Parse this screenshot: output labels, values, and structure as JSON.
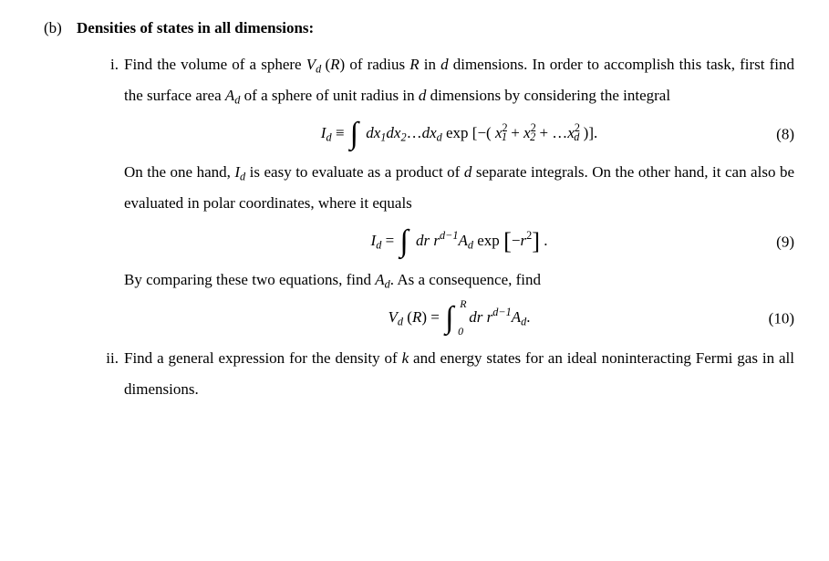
{
  "part_b": {
    "label": "(b)",
    "title": "Densities of states in all dimensions:"
  },
  "item_i": {
    "label": "i.",
    "para1": "Find the volume of a sphere ",
    "Vd": "V",
    "Vd_sub": "d",
    "Rparen": "(R)",
    "para1b": " of radius ",
    "R": "R",
    "para1c": " in ",
    "d": "d",
    "para1d": " dimensions. In order to accomplish this task, first find the surface area ",
    "Ad": "A",
    "Ad_sub": "d",
    "para1e": " of a sphere of unit radius in ",
    "para1f": " dimensions by considering the integral",
    "para2a": "On the one hand, ",
    "Id": "I",
    "Id_sub": "d",
    "para2b": " is easy to evaluate as a product of ",
    "para2c": " separate integrals. On the other hand, it can also be evaluated in polar coordinates, where it equals",
    "para3a": "By comparing these two equations, find ",
    "para3b": ". As a consequence, find"
  },
  "eq8": {
    "lhs_I": "I",
    "lhs_d": "d",
    "eq": " ≡ ",
    "dx1": "dx",
    "s1": "1",
    "dx2": "dx",
    "s2": "2",
    "dots": "…",
    "dxd": "dx",
    "sd": "d",
    "exp": " exp ",
    "lb": "[",
    "rb": "]",
    "minus": "−(",
    "x": "x",
    "x1s": "1",
    "sq": "2",
    "plus": " + ",
    "x2s": "2",
    "plus2": " + …",
    "xds": "d",
    "close": ")",
    "dot": ".",
    "num": "(8)"
  },
  "eq9": {
    "lhs_I": "I",
    "lhs_d": "d",
    "eq": " = ",
    "dr": "dr ",
    "r": "r",
    "exp_dm1": "d−1",
    "A": "A",
    "Asub": "d",
    "exptxt": " exp ",
    "lb": "[",
    "rb": "]",
    "minus": "−",
    "rsq": "r",
    "sq": "2",
    "dot": ".",
    "num": "(9)"
  },
  "eq10": {
    "V": "V",
    "Vsub": "d",
    "Rparen": "(R)",
    "eq": " = ",
    "upper": "R",
    "lower": "0",
    "dr": "dr ",
    "r": "r",
    "exp_dm1": "d−1",
    "A": "A",
    "Asub": "d",
    "dot": ".",
    "num": "(10)"
  },
  "item_ii": {
    "label": "ii.",
    "text_a": "Find a general expression for the density of ",
    "k": "k",
    "text_b": " and energy states for an ideal noninteracting Fermi gas in all dimensions."
  }
}
